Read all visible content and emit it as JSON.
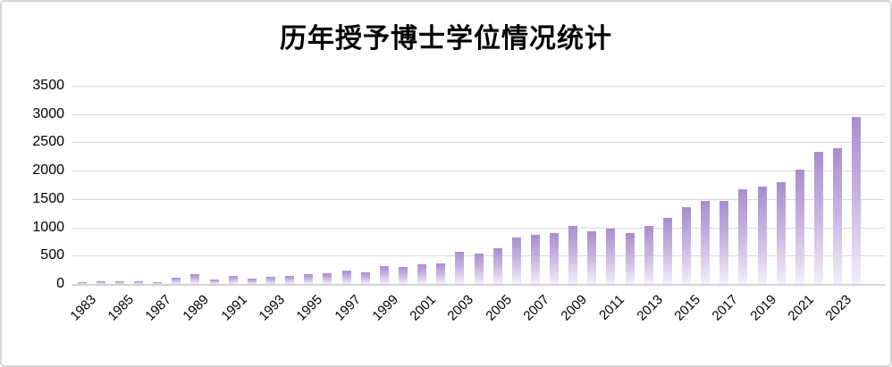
{
  "chart_data": {
    "type": "bar",
    "title": "历年授予博士学位情况统计",
    "categories": [
      1983,
      1984,
      1985,
      1986,
      1987,
      1988,
      1989,
      1990,
      1991,
      1992,
      1993,
      1994,
      1995,
      1996,
      1997,
      1998,
      1999,
      2000,
      2001,
      2002,
      2003,
      2004,
      2005,
      2006,
      2007,
      2008,
      2009,
      2010,
      2011,
      2012,
      2013,
      2014,
      2015,
      2016,
      2017,
      2018,
      2019,
      2020,
      2021,
      2022,
      2023,
      2024
    ],
    "values": [
      35,
      55,
      50,
      50,
      30,
      115,
      175,
      80,
      135,
      95,
      125,
      140,
      170,
      195,
      240,
      210,
      315,
      300,
      340,
      370,
      565,
      540,
      625,
      815,
      865,
      895,
      1025,
      925,
      970,
      905,
      1020,
      1160,
      1350,
      1460,
      1470,
      1670,
      1715,
      1795,
      2020,
      2330,
      2400,
      2950
    ],
    "x_tick_labels": [
      "1983",
      "1985",
      "1987",
      "1989",
      "1991",
      "1993",
      "1995",
      "1997",
      "1999",
      "2001",
      "2003",
      "2005",
      "2007",
      "2009",
      "2011",
      "2013",
      "2015",
      "2017",
      "2019",
      "2021",
      "2023"
    ],
    "y_tick_labels": [
      "0",
      "500",
      "1000",
      "1500",
      "2000",
      "2500",
      "3000",
      "3500"
    ],
    "ylim": [
      0,
      3500
    ],
    "y_tick_step": 500,
    "xlabel": "",
    "ylabel": "",
    "grid": "horizontal",
    "legend": "none",
    "colors": {
      "bar_gradient_top": "#a98dcf",
      "bar_gradient_mid": "#c9b7e2",
      "bar_gradient_bottom": "#f2eef9",
      "gridline": "#d9d9d9",
      "axis_line": "#d2d2d2",
      "text": "#000000",
      "card_border": "#d6d6d6",
      "background": "#ffffff"
    }
  }
}
